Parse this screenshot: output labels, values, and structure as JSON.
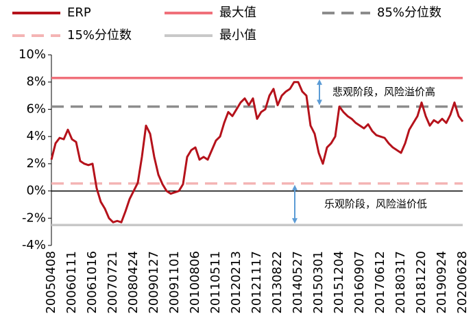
{
  "chart_data": {
    "type": "line",
    "categories": [
      "20050408",
      null,
      null,
      null,
      null,
      "20060111",
      null,
      null,
      null,
      null,
      "20061016",
      null,
      null,
      null,
      null,
      "20070721",
      null,
      null,
      null,
      null,
      "20080424",
      null,
      null,
      null,
      null,
      "20090127",
      null,
      null,
      null,
      null,
      "20091101",
      null,
      null,
      null,
      null,
      "20100806",
      null,
      null,
      null,
      null,
      "20110511",
      null,
      null,
      null,
      null,
      "20120213",
      null,
      null,
      null,
      null,
      "20121117",
      null,
      null,
      null,
      null,
      "20130822",
      null,
      null,
      null,
      null,
      "20140527",
      null,
      null,
      null,
      null,
      "20150301",
      null,
      null,
      null,
      null,
      "20151204",
      null,
      null,
      null,
      null,
      "20160907",
      null,
      null,
      null,
      null,
      "20170612",
      null,
      null,
      null,
      null,
      "20180317",
      null,
      null,
      null,
      null,
      "20181220",
      null,
      null,
      null,
      null,
      "20190924",
      null,
      null,
      null,
      null,
      "20200628"
    ],
    "series": [
      {
        "name": "ERP",
        "color": "#b5121b",
        "values": [
          2.3,
          3.5,
          3.9,
          3.8,
          4.5,
          3.8,
          3.6,
          2.2,
          2.0,
          1.9,
          2.0,
          0.2,
          -0.8,
          -1.3,
          -2.0,
          -2.3,
          -2.2,
          -2.3,
          -1.5,
          -0.6,
          0.0,
          0.6,
          2.5,
          4.8,
          4.2,
          2.5,
          1.2,
          0.5,
          0.0,
          -0.2,
          -0.1,
          0.0,
          0.5,
          2.5,
          3.0,
          3.2,
          2.3,
          2.5,
          2.3,
          3.0,
          3.7,
          4.0,
          5.0,
          5.8,
          5.5,
          6.0,
          6.5,
          6.8,
          6.3,
          6.8,
          5.3,
          5.8,
          6.0,
          7.0,
          7.5,
          6.3,
          7.0,
          7.3,
          7.5,
          8.0,
          8.0,
          7.3,
          7.0,
          4.8,
          4.2,
          2.8,
          2.0,
          3.2,
          3.5,
          4.0,
          6.2,
          5.8,
          5.5,
          5.3,
          5.0,
          4.8,
          4.6,
          4.9,
          4.4,
          4.1,
          4.0,
          3.9,
          3.5,
          3.2,
          3.0,
          2.8,
          3.5,
          4.5,
          5.0,
          5.5,
          6.5,
          5.5,
          4.8,
          5.2,
          5.0,
          5.3,
          5.0,
          5.6,
          6.5,
          5.5,
          5.1
        ]
      }
    ],
    "reference_lines": [
      {
        "name": "最大值",
        "value": 8.3,
        "color": "#f0707a",
        "dash": false
      },
      {
        "name": "85%分位数",
        "value": 6.2,
        "color": "#8c8c8c",
        "dash": true
      },
      {
        "name": "15%分位数",
        "value": 0.55,
        "color": "#f4b4b4",
        "dash": true
      },
      {
        "name": "最小值",
        "value": -2.5,
        "color": "#c8c8c8",
        "dash": false
      }
    ],
    "annotations": [
      "悲观阶段，风险溢价高",
      "乐观阶段，风险溢价低"
    ],
    "ylim": [
      -4,
      10
    ],
    "yticks": [
      {
        "value": -4,
        "label": "-4%"
      },
      {
        "value": -2,
        "label": "-2%"
      },
      {
        "value": 0,
        "label": "0%"
      },
      {
        "value": 2,
        "label": "2%"
      },
      {
        "value": 4,
        "label": "4%"
      },
      {
        "value": 6,
        "label": "6%"
      },
      {
        "value": 8,
        "label": "8%"
      },
      {
        "value": 10,
        "label": "10%"
      }
    ]
  }
}
